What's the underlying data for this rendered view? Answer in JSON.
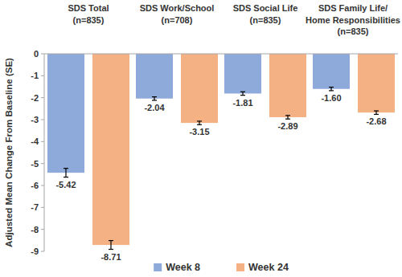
{
  "chart_data": {
    "type": "bar",
    "y_label": "Adjusted Mean Change From Baseline (SE)",
    "categories": [
      "SDS Total\n(n=835)",
      "SDS Work/School\n(n=708)",
      "SDS Social Life\n(n=835)",
      "SDS Family Life/\nHome Responsibilities\n(n=835)"
    ],
    "series": [
      {
        "name": "Week 8",
        "color": "#8eaadb",
        "values": [
          -5.42,
          -2.04,
          -1.81,
          -1.6
        ],
        "value_labels": [
          "-5.42",
          "-2.04",
          "-1.81",
          "-1.60"
        ],
        "errors": [
          0.2,
          0.08,
          0.08,
          0.08
        ]
      },
      {
        "name": "Week 24",
        "color": "#f4b183",
        "values": [
          -8.71,
          -3.15,
          -2.89,
          -2.68
        ],
        "value_labels": [
          "-8.71",
          "-3.15",
          "-2.89",
          "-2.68"
        ],
        "errors": [
          0.2,
          0.08,
          0.08,
          0.08
        ]
      }
    ],
    "ylim": [
      -9,
      0
    ],
    "yticks": [
      0,
      -1,
      -2,
      -3,
      -4,
      -5,
      -6,
      -7,
      -8,
      -9
    ],
    "grid": false,
    "legend": "bottom",
    "data_labels": true
  }
}
